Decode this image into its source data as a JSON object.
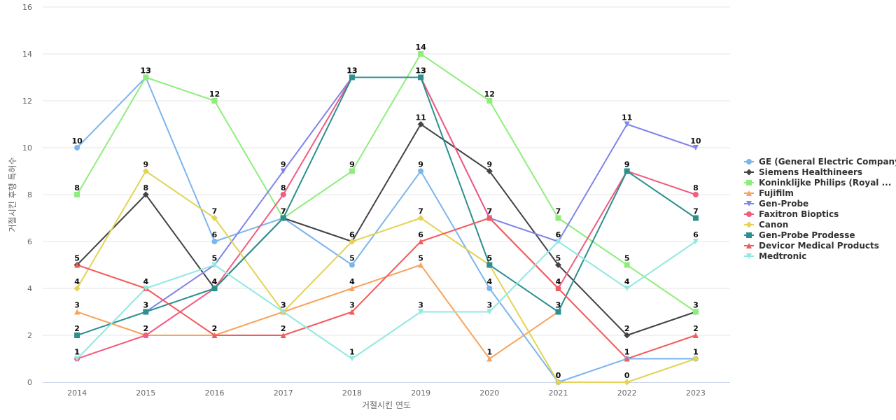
{
  "chart_data": {
    "type": "line",
    "xlabel": "거절시킨 연도",
    "ylabel": "거절시킨 후행 특허수",
    "x": [
      "2014",
      "2015",
      "2016",
      "2017",
      "2018",
      "2019",
      "2020",
      "2021",
      "2022",
      "2023"
    ],
    "ylim": [
      0,
      16
    ],
    "yticks": [
      0,
      2,
      4,
      6,
      8,
      10,
      12,
      14,
      16
    ],
    "grid": true,
    "legend_position": "right",
    "series": [
      {
        "name": "GE (General Electric Company)",
        "color": "#7cb5ec",
        "marker": "circle",
        "values": [
          10,
          13,
          6,
          7,
          5,
          9,
          4,
          0,
          1,
          1
        ]
      },
      {
        "name": "Siemens Healthineers",
        "color": "#434348",
        "marker": "diamond",
        "values": [
          5,
          8,
          4,
          7,
          6,
          11,
          9,
          5,
          2,
          3
        ]
      },
      {
        "name": "Koninklijke Philips (Royal ...",
        "color": "#90ed7d",
        "marker": "square",
        "values": [
          8,
          13,
          12,
          7,
          9,
          14,
          12,
          7,
          5,
          3
        ]
      },
      {
        "name": "Fujifilm",
        "color": "#f7a35c",
        "marker": "triangle",
        "values": [
          3,
          2,
          2,
          3,
          4,
          5,
          1,
          3,
          null,
          null
        ]
      },
      {
        "name": "Gen-Probe",
        "color": "#8085e9",
        "marker": "triangle-down",
        "values": [
          null,
          3,
          5,
          9,
          13,
          13,
          7,
          6,
          11,
          10
        ]
      },
      {
        "name": "Faxitron Bioptics",
        "color": "#f15c80",
        "marker": "circle",
        "values": [
          1,
          2,
          4,
          8,
          13,
          13,
          7,
          4,
          9,
          8
        ]
      },
      {
        "name": "Canon",
        "color": "#e4d354",
        "marker": "diamond",
        "values": [
          4,
          9,
          7,
          3,
          6,
          7,
          5,
          0,
          0,
          1
        ]
      },
      {
        "name": "Gen-Probe Prodesse",
        "color": "#2b908f",
        "marker": "square",
        "values": [
          2,
          3,
          4,
          7,
          13,
          13,
          5,
          3,
          9,
          7
        ]
      },
      {
        "name": "Devicor Medical Products",
        "color": "#f45b5b",
        "marker": "triangle",
        "values": [
          5,
          4,
          2,
          2,
          3,
          6,
          7,
          4,
          1,
          2
        ]
      },
      {
        "name": "Medtronic",
        "color": "#91e8e1",
        "marker": "triangle-down",
        "values": [
          1,
          4,
          5,
          3,
          1,
          3,
          3,
          6,
          4,
          6
        ]
      }
    ]
  }
}
